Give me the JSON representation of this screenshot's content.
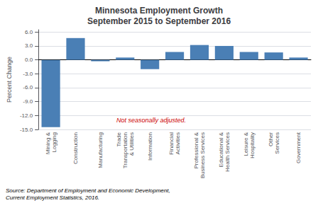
{
  "chart_data": {
    "type": "bar",
    "title": "Minnesota Employment Growth\nSeptember 2015 to September 2016",
    "categories": [
      "Mining &\nLogging",
      "Construction",
      "Manufacturing",
      "Trade\nTransportation\n& Utilities",
      "Information",
      "Financial\nActivities",
      "Professional &\nBusiness Services",
      "Educational &\nHealth Services",
      "Leisure &\nHospitality",
      "Other\nServices",
      "Government"
    ],
    "values": [
      -14.5,
      4.7,
      -0.3,
      0.5,
      -2.0,
      1.7,
      3.2,
      3.0,
      1.7,
      1.6,
      0.5
    ],
    "color": "#4a7fb5",
    "ylabel": "Percent Change",
    "ylim": [
      -15.0,
      6.5
    ],
    "yticks": [
      {
        "value": -15.0,
        "label": "-15.0"
      },
      {
        "value": -12.0,
        "label": "-12.0"
      },
      {
        "value": -9.0,
        "label": "-9.0"
      },
      {
        "value": -6.0,
        "label": "-6.0"
      },
      {
        "value": -3.0,
        "label": "-3.0"
      },
      {
        "value": 0.0,
        "label": "0.0"
      },
      {
        "value": 3.0,
        "label": "3.0"
      },
      {
        "value": 6.0,
        "label": "6.0"
      }
    ],
    "grid": true,
    "annotations": [
      {
        "text": "Not seasonally adjusted.",
        "color": "#cc0000"
      },
      {
        "text": "Source: Department of Employment and Economic Development,\nCurrent Employment Statistics, 2016."
      }
    ]
  }
}
